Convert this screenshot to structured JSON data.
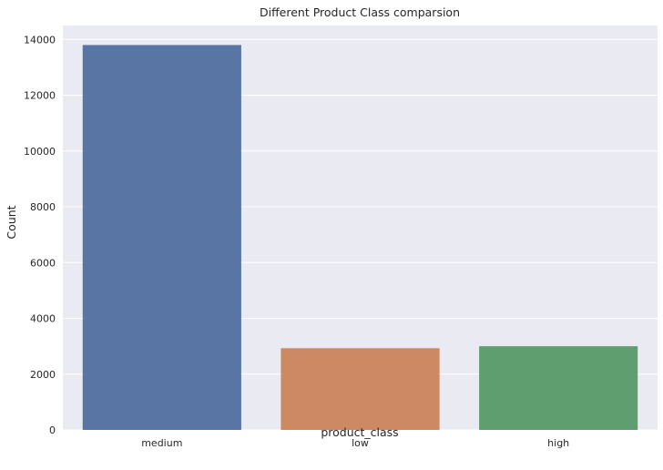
{
  "chart_data": {
    "type": "bar",
    "title": "Different Product Class comparsion",
    "xlabel": "product_class",
    "ylabel": "Count",
    "categories": [
      "medium",
      "low",
      "high"
    ],
    "values": [
      13800,
      2930,
      3000
    ],
    "colors": [
      "#5875a4",
      "#cc8963",
      "#5f9e6e"
    ],
    "ylim": [
      0,
      14500
    ],
    "yticks": [
      0,
      2000,
      4000,
      6000,
      8000,
      10000,
      12000,
      14000
    ],
    "grid": true,
    "legend": "none"
  },
  "theme": {
    "plot_background": "#eaeaf2",
    "grid_color": "#ffffff",
    "text_color": "#262626"
  }
}
